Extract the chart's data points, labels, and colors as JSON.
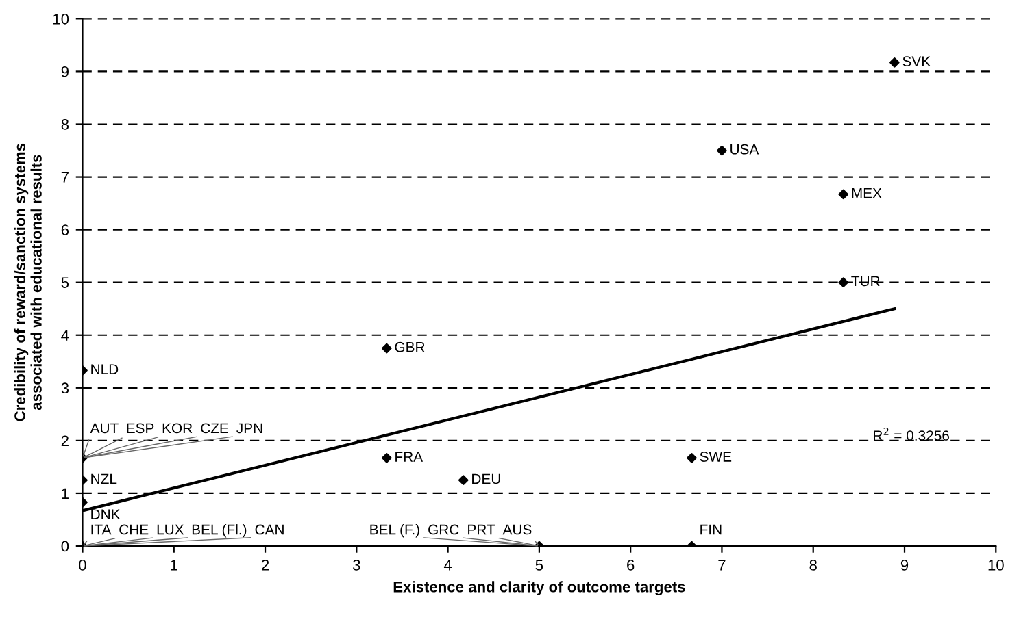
{
  "chart_data": {
    "type": "scatter",
    "xlabel": "Existence and clarity of outcome targets",
    "ylabel": "Credibility of reward/sanction systems\nassociated with educational results",
    "xlim": [
      0,
      10
    ],
    "ylim": [
      0,
      10
    ],
    "xticks": [
      0,
      1,
      2,
      3,
      4,
      5,
      6,
      7,
      8,
      9,
      10
    ],
    "yticks": [
      0,
      1,
      2,
      3,
      4,
      5,
      6,
      7,
      8,
      9,
      10
    ],
    "grid": "y",
    "legend": false,
    "series": [
      {
        "marker": "diamond",
        "color": "#000000",
        "x": [
          8.89,
          7,
          8.33,
          8.33,
          3.33,
          0,
          0,
          3.33,
          6.67,
          4.17,
          0,
          0,
          6.67,
          5,
          0
        ],
        "values": [
          9.17,
          7.5,
          6.67,
          5,
          3.75,
          3.33,
          1.67,
          1.67,
          1.67,
          1.25,
          1.25,
          0.83,
          0,
          0,
          0
        ]
      },
      {
        "type": "line",
        "color": "#000000",
        "x": [
          0,
          8.89
        ],
        "values": [
          0.67,
          4.5
        ]
      }
    ],
    "annotations": [
      {
        "text": "SVK",
        "x": 8.89,
        "y": 9.17
      },
      {
        "text": "USA",
        "x": 7,
        "y": 7.5
      },
      {
        "text": "MEX",
        "x": 8.33,
        "y": 6.67
      },
      {
        "text": "TUR",
        "x": 8.33,
        "y": 5
      },
      {
        "text": "GBR",
        "x": 3.33,
        "y": 3.75
      },
      {
        "text": "NLD",
        "x": 0,
        "y": 3.33
      },
      {
        "text": "AUT",
        "x": 0,
        "y": 1.67
      },
      {
        "text": "ESP",
        "x": 0,
        "y": 1.67
      },
      {
        "text": "KOR",
        "x": 0,
        "y": 1.67
      },
      {
        "text": "CZE",
        "x": 0,
        "y": 1.67
      },
      {
        "text": "JPN",
        "x": 0,
        "y": 1.67
      },
      {
        "text": "FRA",
        "x": 3.33,
        "y": 1.67
      },
      {
        "text": "SWE",
        "x": 6.67,
        "y": 1.67
      },
      {
        "text": "DEU",
        "x": 4.17,
        "y": 1.25
      },
      {
        "text": "NZL",
        "x": 0,
        "y": 1.25
      },
      {
        "text": "DNK",
        "x": 0,
        "y": 0.83
      },
      {
        "text": "ITA",
        "x": 0,
        "y": 0
      },
      {
        "text": "CHE",
        "x": 0,
        "y": 0
      },
      {
        "text": "LUX",
        "x": 0,
        "y": 0
      },
      {
        "text": "BEL (Fl.)",
        "x": 0,
        "y": 0
      },
      {
        "text": "CAN",
        "x": 0,
        "y": 0
      },
      {
        "text": "BEL (F.)",
        "x": 5,
        "y": 0
      },
      {
        "text": "GRC",
        "x": 5,
        "y": 0
      },
      {
        "text": "PRT",
        "x": 5,
        "y": 0
      },
      {
        "text": "AUS",
        "x": 5,
        "y": 0
      },
      {
        "text": "FIN",
        "x": 6.67,
        "y": 0
      },
      "R$^{2}$ = 0.3256"
    ]
  }
}
